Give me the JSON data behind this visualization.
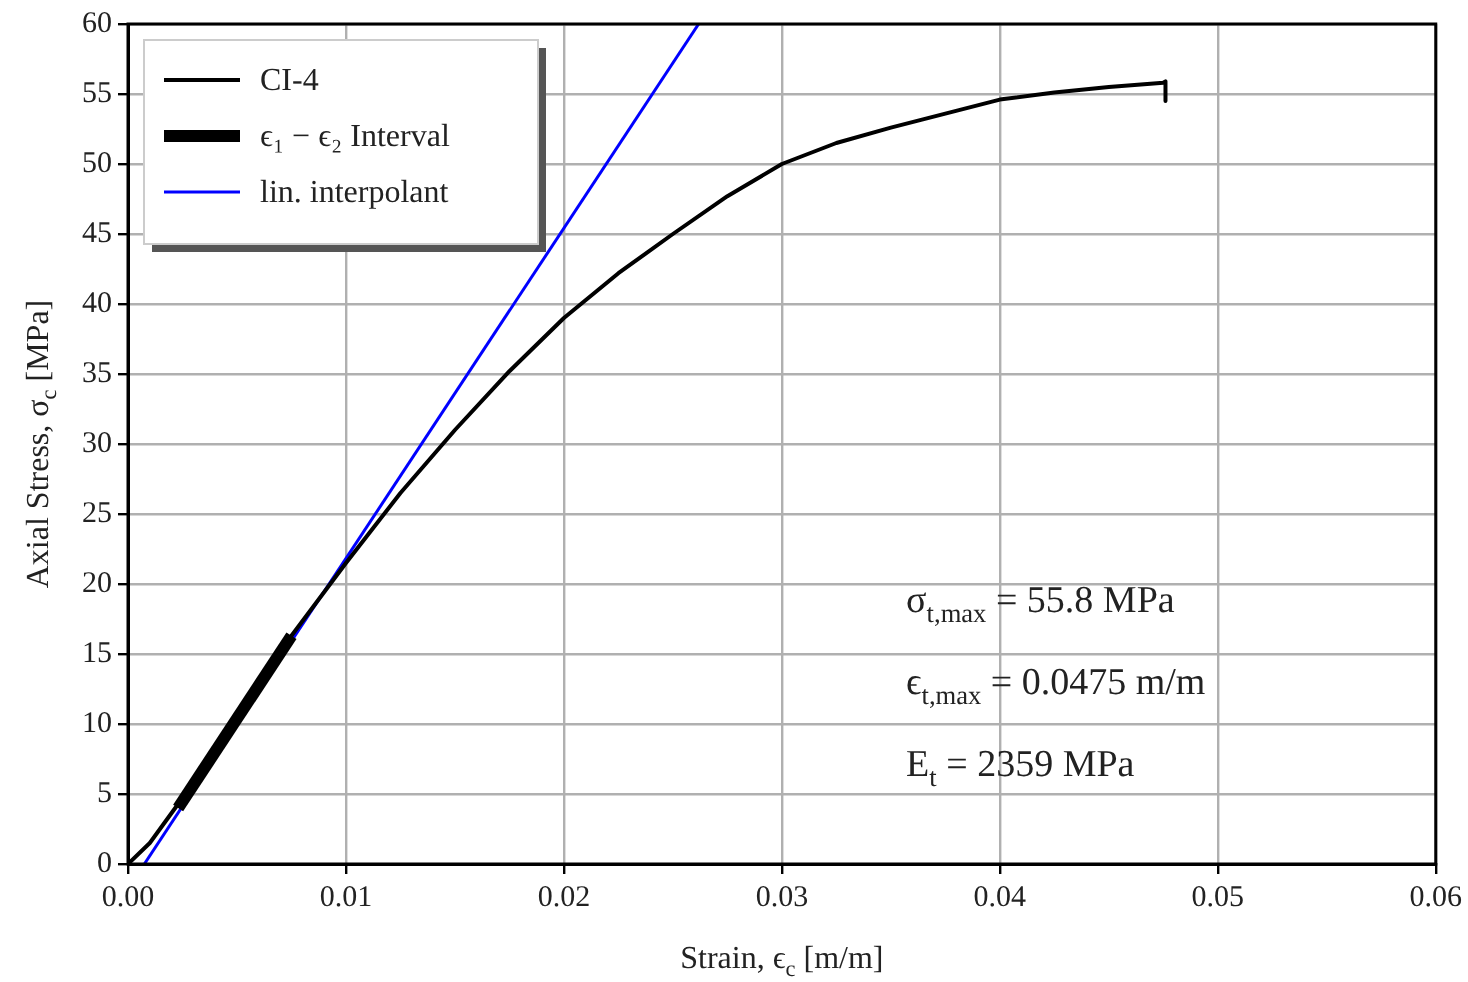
{
  "chart_data": {
    "type": "line",
    "xlabel": "Strain, ϵ$_{c}$ [m/m]",
    "ylabel": "Axial Stress, σ$_{c}$ [MPa]",
    "series": [
      {
        "name": "CI-4",
        "color": "#000000",
        "x": [
          0,
          0.001,
          0.0024,
          0.005,
          0.0075,
          0.01,
          0.0125,
          0.015,
          0.0175,
          0.02,
          0.0225,
          0.025,
          0.0275,
          0.03,
          0.0325,
          0.035,
          0.0375,
          0.04,
          0.0425,
          0.045,
          0.0475,
          0.0476,
          0.0476
        ],
        "values": [
          0,
          1.5,
          4.5,
          10.5,
          16.3,
          21.5,
          26.5,
          31,
          35.2,
          39,
          42.2,
          45,
          47.7,
          50,
          51.5,
          52.6,
          53.6,
          54.6,
          55.1,
          55.5,
          55.8,
          55.9,
          54.5
        ]
      },
      {
        "name": "ϵ₁ − ϵ₂ Interval",
        "color": "#000000",
        "x": [
          0.0023,
          0.0075
        ],
        "values": [
          4,
          16.3
        ]
      },
      {
        "name": "lin. interpolant",
        "color": "#0000ff",
        "x": [
          0.00075,
          0.02618
        ],
        "values": [
          0,
          60
        ]
      }
    ],
    "xlim": [
      0,
      0.06
    ],
    "xticks": [
      {
        "value": 0,
        "label": "0.00"
      },
      {
        "value": 0.01,
        "label": "0.01"
      },
      {
        "value": 0.02,
        "label": "0.02"
      },
      {
        "value": 0.03,
        "label": "0.03"
      },
      {
        "value": 0.04,
        "label": "0.04"
      },
      {
        "value": 0.05,
        "label": "0.05"
      },
      {
        "value": 0.06,
        "label": "0.06"
      }
    ],
    "ylim": [
      0,
      60
    ],
    "yticks": [
      0,
      5,
      10,
      15,
      20,
      25,
      30,
      35,
      40,
      45,
      50,
      55,
      60
    ],
    "grid": true,
    "legend": "top left",
    "marker": "none",
    "line_style": "solid",
    "annotations": [
      "σ$_{t,max}$ = 55.8 MPa",
      "ϵ$_{t,max}$ = 0.0475 m/m",
      "E$_{t}$ = 2359 MPa"
    ]
  }
}
